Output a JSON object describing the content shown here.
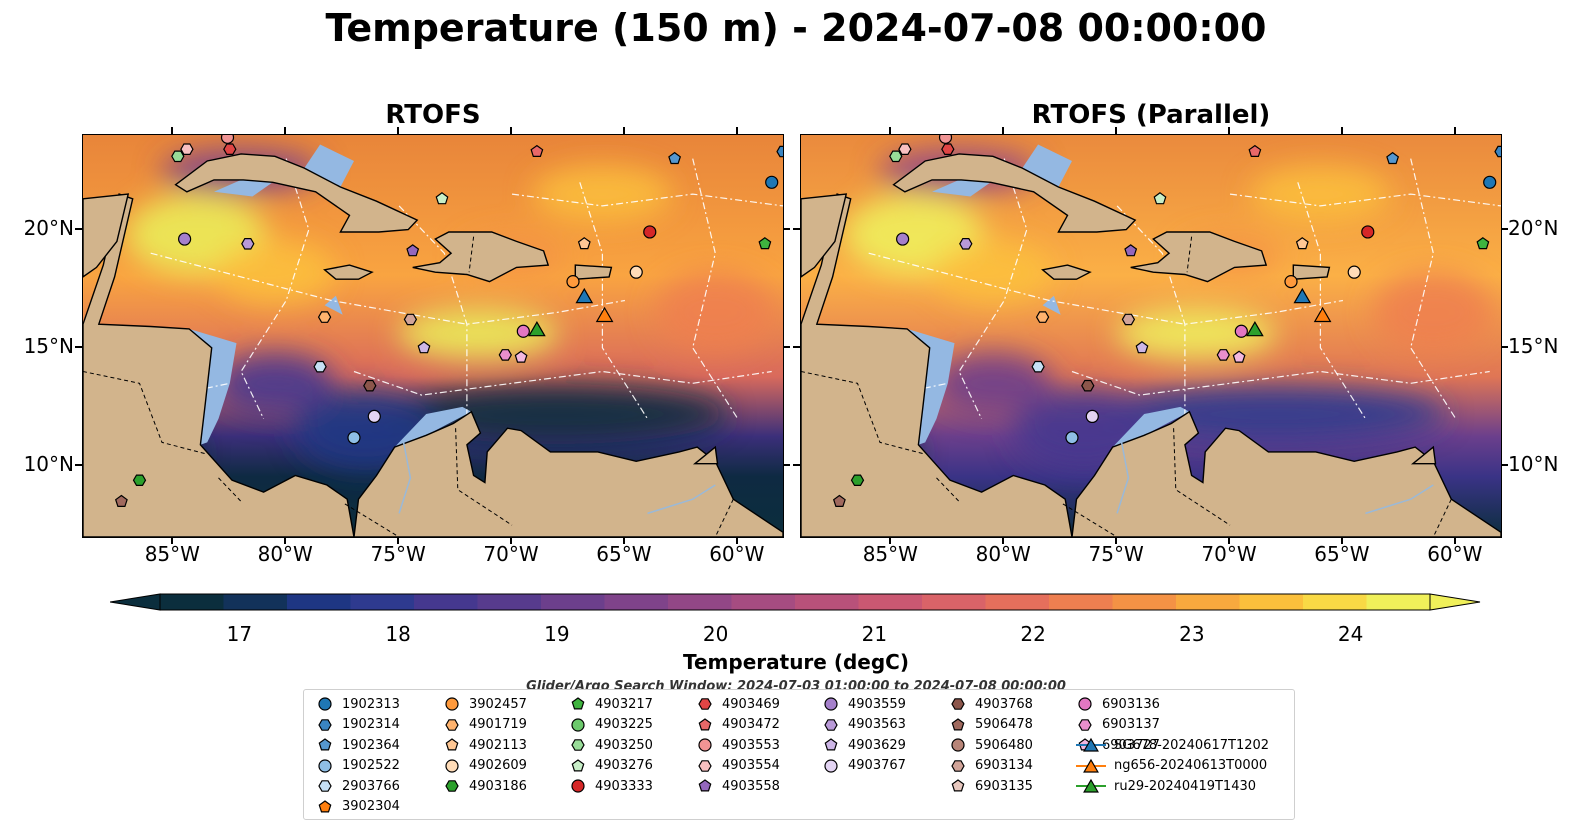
{
  "title": "Temperature (150 m) - 2024-07-08 00:00:00",
  "panels": [
    {
      "title": "RTOFS"
    },
    {
      "title": "RTOFS (Parallel)"
    }
  ],
  "axes": {
    "lon_labels": [
      "85°W",
      "80°W",
      "75°W",
      "70°W",
      "65°W",
      "60°W"
    ],
    "lon_values": [
      -85,
      -80,
      -75,
      -70,
      -65,
      -60
    ],
    "lat_labels": [
      "20°N",
      "15°N",
      "10°N"
    ],
    "lat_values": [
      20,
      15,
      10
    ],
    "lon_range": [
      -89,
      -58
    ],
    "lat_range": [
      7,
      24
    ]
  },
  "colorbar": {
    "label": "Temperature (degC)",
    "tick_labels": [
      "17",
      "18",
      "19",
      "20",
      "21",
      "22",
      "23",
      "24"
    ],
    "range": [
      16.5,
      24.5
    ],
    "extend": "both",
    "colors": [
      "#0b2e3d",
      "#12325a",
      "#1e3683",
      "#2e3a8f",
      "#45388f",
      "#573b8d",
      "#6c3f8c",
      "#7f438a",
      "#924786",
      "#a64c81",
      "#b8517a",
      "#ca5872",
      "#d96368",
      "#e56f5c",
      "#ee7f50",
      "#f49245",
      "#f8a93e",
      "#fbc03c",
      "#f9d945",
      "#f0f05a"
    ]
  },
  "search_window": "Glider/Argo Search Window: 2024-07-03 01:00:00 to 2024-07-08 00:00:00",
  "legend": [
    {
      "id": "1902313",
      "marker": "circle",
      "color": "#1f77b4"
    },
    {
      "id": "1902314",
      "marker": "hexagon",
      "color": "#3a85c2"
    },
    {
      "id": "1902364",
      "marker": "pentagon",
      "color": "#5597cf"
    },
    {
      "id": "1902522",
      "marker": "circle",
      "color": "#8fbfe6"
    },
    {
      "id": "2903766",
      "marker": "hexagon",
      "color": "#c6e0f5"
    },
    {
      "id": "3902304",
      "marker": "pentagon",
      "color": "#ff7f0e"
    },
    {
      "id": "3902457",
      "marker": "circle",
      "color": "#ff9a3c"
    },
    {
      "id": "4901719",
      "marker": "hexagon",
      "color": "#ffb36e"
    },
    {
      "id": "4902113",
      "marker": "pentagon",
      "color": "#ffc794"
    },
    {
      "id": "4902609",
      "marker": "circle",
      "color": "#ffdcb8"
    },
    {
      "id": "4903186",
      "marker": "hexagon",
      "color": "#2ca02c"
    },
    {
      "id": "4903217",
      "marker": "pentagon",
      "color": "#3fb43f"
    },
    {
      "id": "4903225",
      "marker": "circle",
      "color": "#6cc96c"
    },
    {
      "id": "4903250",
      "marker": "hexagon",
      "color": "#98dc98"
    },
    {
      "id": "4903276",
      "marker": "pentagon",
      "color": "#c8efc8"
    },
    {
      "id": "4903333",
      "marker": "circle",
      "color": "#d62728"
    },
    {
      "id": "4903469",
      "marker": "hexagon",
      "color": "#e04545"
    },
    {
      "id": "4903472",
      "marker": "pentagon",
      "color": "#e86868"
    },
    {
      "id": "4903553",
      "marker": "circle",
      "color": "#f09494"
    },
    {
      "id": "4903554",
      "marker": "hexagon",
      "color": "#f8c0c0"
    },
    {
      "id": "4903558",
      "marker": "pentagon",
      "color": "#9467bd"
    },
    {
      "id": "4903559",
      "marker": "circle",
      "color": "#a580cb"
    },
    {
      "id": "4903563",
      "marker": "hexagon",
      "color": "#b99ad8"
    },
    {
      "id": "4903629",
      "marker": "pentagon",
      "color": "#cdb6e6"
    },
    {
      "id": "4903767",
      "marker": "circle",
      "color": "#e3d4f3"
    },
    {
      "id": "4903768",
      "marker": "hexagon",
      "color": "#8c564b"
    },
    {
      "id": "5906478",
      "marker": "pentagon",
      "color": "#a0695e"
    },
    {
      "id": "5906480",
      "marker": "circle",
      "color": "#b88578"
    },
    {
      "id": "6903134",
      "marker": "hexagon",
      "color": "#d1a499"
    },
    {
      "id": "6903135",
      "marker": "pentagon",
      "color": "#e8c8bf"
    },
    {
      "id": "6903136",
      "marker": "circle",
      "color": "#e377c2"
    },
    {
      "id": "6903137",
      "marker": "hexagon",
      "color": "#ea8fcd"
    },
    {
      "id": "6903727",
      "marker": "pentagon",
      "color": "#f3b8e0"
    },
    {
      "id": "SG678-20240617T1202",
      "marker": "triangle",
      "color": "#1f77b4"
    },
    {
      "id": "ng656-20240613T0000",
      "marker": "triangle",
      "color": "#ff7f0e"
    },
    {
      "id": "ru29-20240419T1430",
      "marker": "triangle",
      "color": "#2ca02c"
    }
  ],
  "observations": [
    {
      "id": "1902313",
      "lon": -58.5,
      "lat": 22.0
    },
    {
      "id": "1902314",
      "lon": -58.0,
      "lat": 23.3
    },
    {
      "id": "1902364",
      "lon": -62.8,
      "lat": 23.0
    },
    {
      "id": "1902522",
      "lon": -77.0,
      "lat": 11.2
    },
    {
      "id": "2903766",
      "lon": -78.5,
      "lat": 14.2
    },
    {
      "id": "3902457",
      "lon": -67.3,
      "lat": 17.8
    },
    {
      "id": "4901719",
      "lon": -78.3,
      "lat": 16.3
    },
    {
      "id": "4902113",
      "lon": -66.8,
      "lat": 19.4
    },
    {
      "id": "4902609",
      "lon": -64.5,
      "lat": 18.2
    },
    {
      "id": "4903186",
      "lon": -86.5,
      "lat": 9.4
    },
    {
      "id": "4903217",
      "lon": -58.8,
      "lat": 19.4
    },
    {
      "id": "4903250",
      "lon": -84.8,
      "lat": 23.1
    },
    {
      "id": "4903276",
      "lon": -73.1,
      "lat": 21.3
    },
    {
      "id": "4903333",
      "lon": -63.9,
      "lat": 19.9
    },
    {
      "id": "4903469",
      "lon": -82.5,
      "lat": 23.4
    },
    {
      "id": "4903472",
      "lon": -68.9,
      "lat": 23.3
    },
    {
      "id": "4903553",
      "lon": -82.6,
      "lat": 23.9
    },
    {
      "id": "4903554",
      "lon": -84.4,
      "lat": 23.4
    },
    {
      "id": "4903558",
      "lon": -74.4,
      "lat": 19.1
    },
    {
      "id": "4903559",
      "lon": -84.5,
      "lat": 19.6
    },
    {
      "id": "4903563",
      "lon": -81.7,
      "lat": 19.4
    },
    {
      "id": "4903629",
      "lon": -73.9,
      "lat": 15.0
    },
    {
      "id": "4903767",
      "lon": -76.1,
      "lat": 12.1
    },
    {
      "id": "4903768",
      "lon": -76.3,
      "lat": 13.4
    },
    {
      "id": "5906478",
      "lon": -87.3,
      "lat": 8.5
    },
    {
      "id": "6903134",
      "lon": -74.5,
      "lat": 16.2
    },
    {
      "id": "6903136",
      "lon": -69.5,
      "lat": 15.7
    },
    {
      "id": "6903137",
      "lon": -70.3,
      "lat": 14.7
    },
    {
      "id": "6903727",
      "lon": -69.6,
      "lat": 14.6
    },
    {
      "id": "SG678-20240617T1202",
      "lon": -66.8,
      "lat": 17.2
    },
    {
      "id": "ng656-20240613T0000",
      "lon": -65.9,
      "lat": 16.4
    },
    {
      "id": "ru29-20240419T1430",
      "lon": -68.9,
      "lat": 15.8
    }
  ]
}
